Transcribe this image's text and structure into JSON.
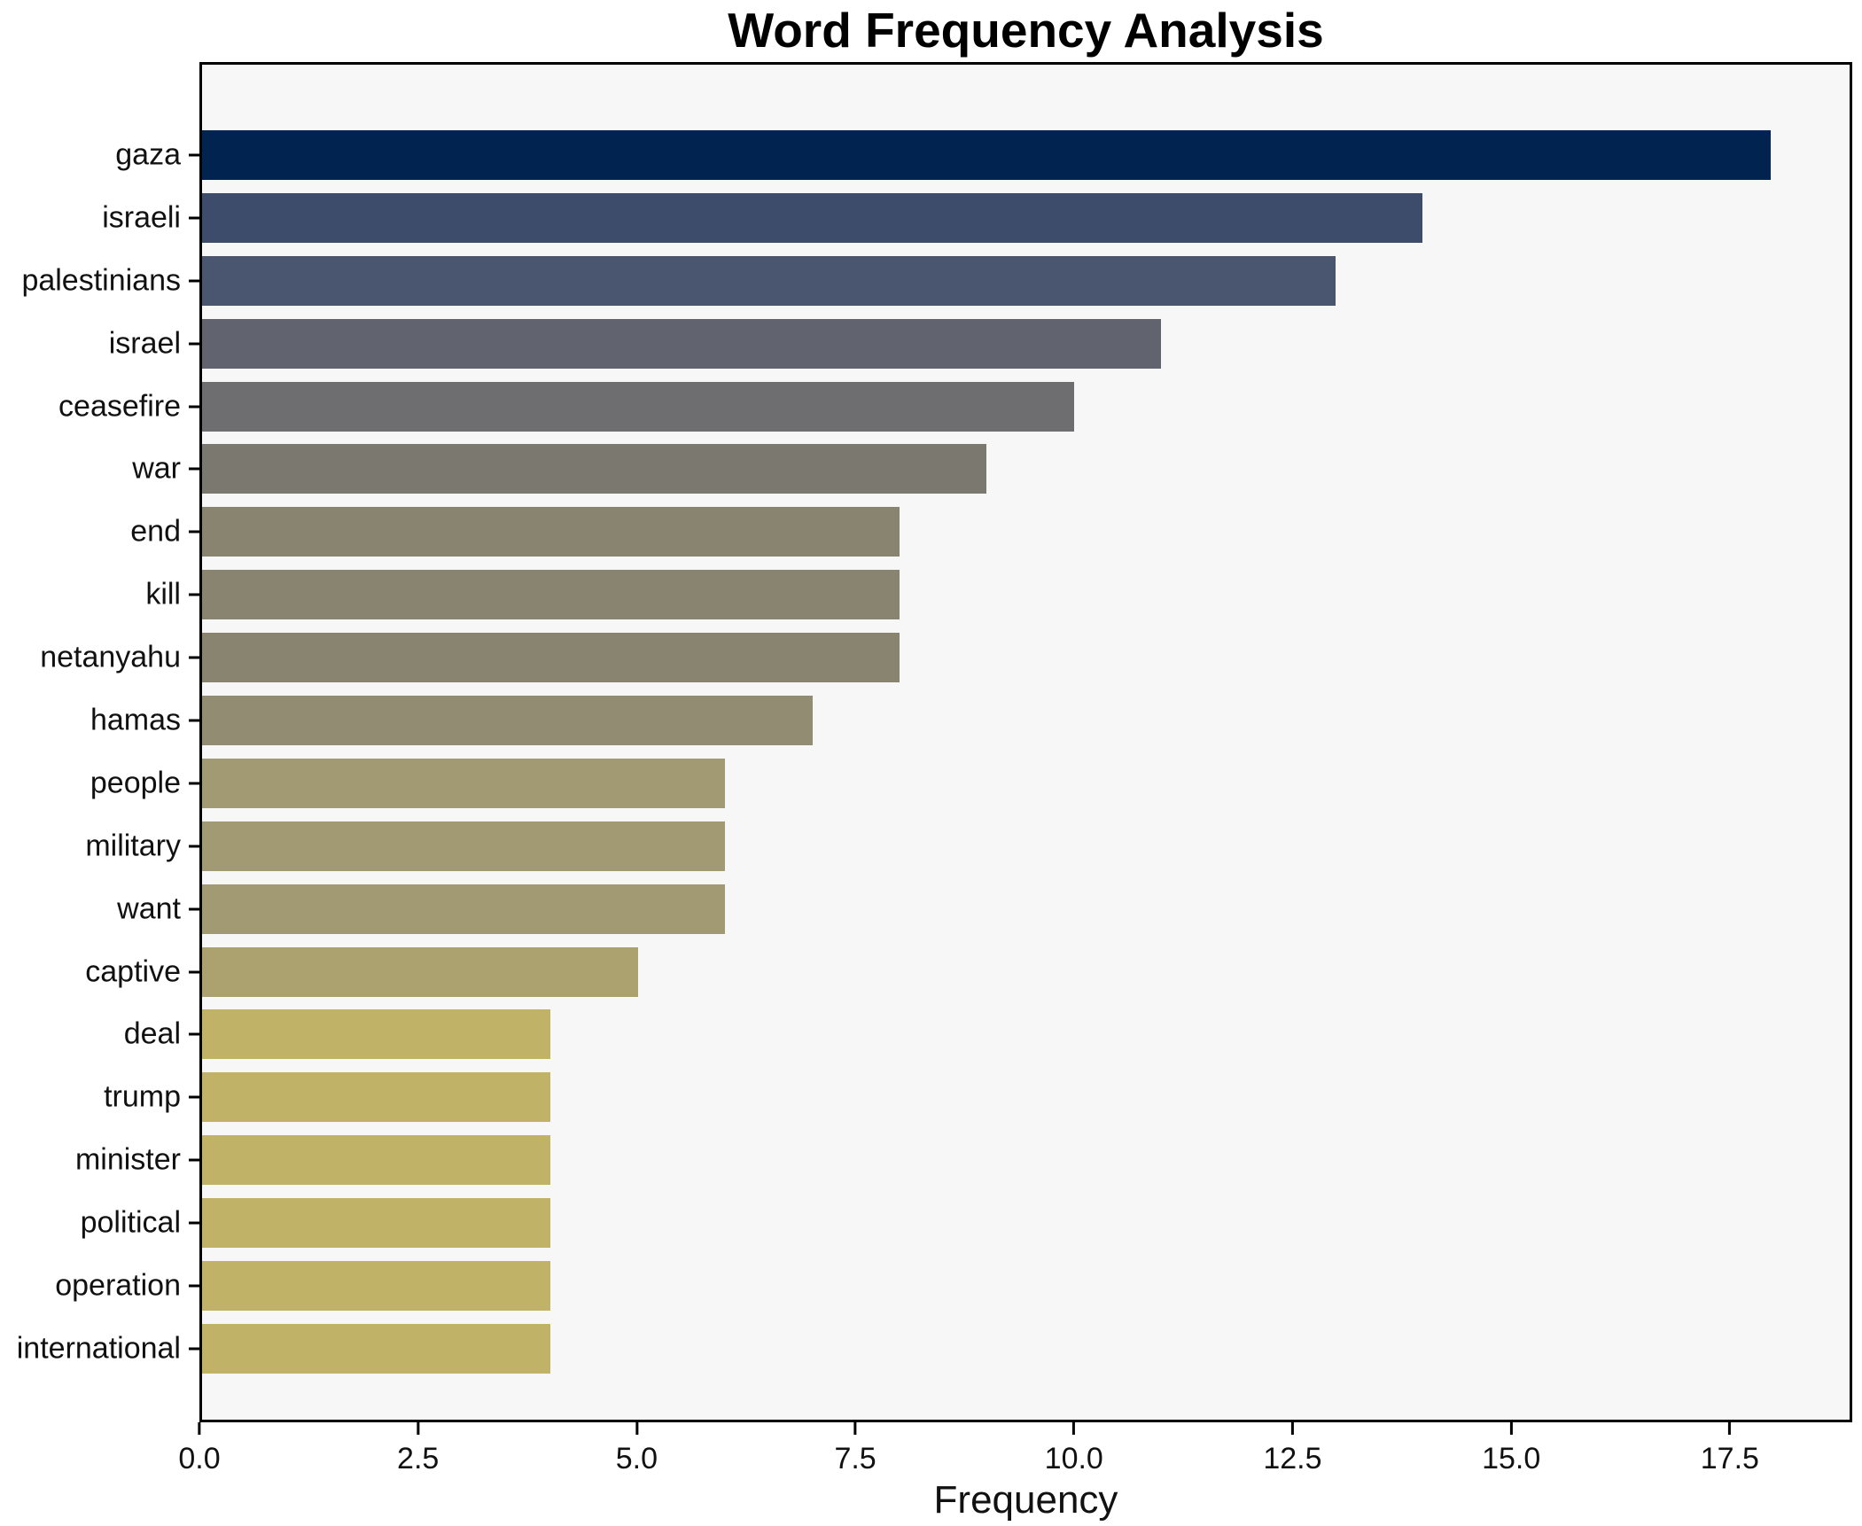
{
  "title": "Word Frequency Analysis",
  "chart_data": {
    "type": "bar",
    "orientation": "horizontal",
    "title": "Word Frequency Analysis",
    "xlabel": "Frequency",
    "ylabel": "",
    "categories": [
      "gaza",
      "israeli",
      "palestinians",
      "israel",
      "ceasefire",
      "war",
      "end",
      "kill",
      "netanyahu",
      "hamas",
      "people",
      "military",
      "want",
      "captive",
      "deal",
      "trump",
      "minister",
      "political",
      "operation",
      "international"
    ],
    "values": [
      18,
      14,
      13,
      11,
      10,
      9,
      8,
      8,
      8,
      7,
      6,
      6,
      6,
      5,
      4,
      4,
      4,
      4,
      4,
      4
    ],
    "bar_colors": [
      "#01234f",
      "#3e4c6c",
      "#4a5570",
      "#61646e",
      "#6e6e70",
      "#7b786f",
      "#898470",
      "#898470",
      "#898470",
      "#928c72",
      "#a19a73",
      "#a19a73",
      "#a19a73",
      "#aba26f",
      "#c0b266",
      "#c0b266",
      "#c0b266",
      "#c0b266",
      "#c0b266",
      "#c0b266"
    ],
    "xlim": [
      0,
      18.9
    ],
    "x_ticks": [
      0.0,
      2.5,
      5.0,
      7.5,
      10.0,
      12.5,
      15.0,
      17.5
    ],
    "x_tick_labels": [
      "0.0",
      "2.5",
      "5.0",
      "7.5",
      "10.0",
      "12.5",
      "15.0",
      "17.5"
    ],
    "grid": false,
    "legend": false,
    "plot_bg": "#f7f7f7",
    "figure_bg": "#ffffff",
    "spine_color": "#000000",
    "colormap": "cividis"
  }
}
